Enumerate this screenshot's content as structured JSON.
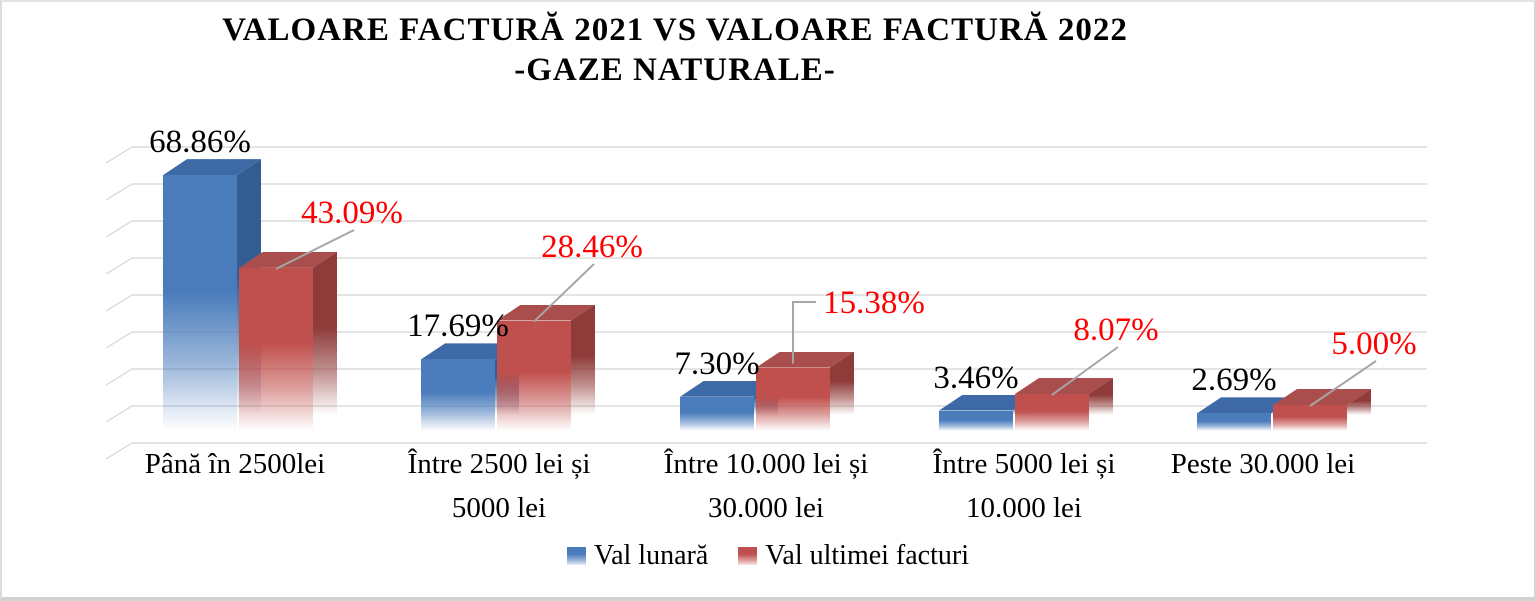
{
  "title": {
    "line1": "VALOARE FACTURĂ 2021 VS VALOARE FACTURĂ 2022",
    "line2": "-GAZE NATURALE-"
  },
  "legend": [
    {
      "label": "Val lunară",
      "color": "#4a7cbc"
    },
    {
      "label": "Val ultimei facturi",
      "color": "#c0504d"
    }
  ],
  "colors": {
    "blue_front": "#4a7cbc",
    "blue_top": "#3d6aa6",
    "blue_side": "#335c92",
    "red_front": "#c0504d",
    "red_top": "#a94e4c",
    "red_side": "#8e3b39",
    "blue_label": "#000000",
    "red_label": "#ff0000",
    "gridline": "#dbdbdb",
    "leader_line": "#a6a6a6"
  },
  "chart_data": {
    "type": "bar",
    "style": "3d-column",
    "title": "VALOARE FACTURĂ 2021 VS VALOARE FACTURĂ 2022 -GAZE NATURALE-",
    "categories": [
      "Până în 2500lei",
      "Între 2500 lei și\n5000 lei",
      "Între 10.000 lei și\n30.000 lei",
      "Între 5000 lei și\n10.000 lei",
      "Peste 30.000 lei"
    ],
    "series": [
      {
        "name": "Val lunară",
        "values": [
          68.86,
          17.69,
          7.3,
          3.46,
          2.69
        ],
        "labels": [
          "68.86%",
          "17.69%",
          "7.30%",
          "3.46%",
          "2.69%"
        ]
      },
      {
        "name": "Val ultimei facturi",
        "values": [
          43.09,
          28.46,
          15.38,
          8.07,
          5.0
        ],
        "labels": [
          "43.09%",
          "28.46%",
          "15.38%",
          "8.07%",
          "5.00%"
        ]
      }
    ],
    "value_axis": {
      "min": 0,
      "max": 80,
      "unit": "%",
      "tick_labels_visible": false
    },
    "grid": "horizontal",
    "legend_position": "bottom"
  }
}
